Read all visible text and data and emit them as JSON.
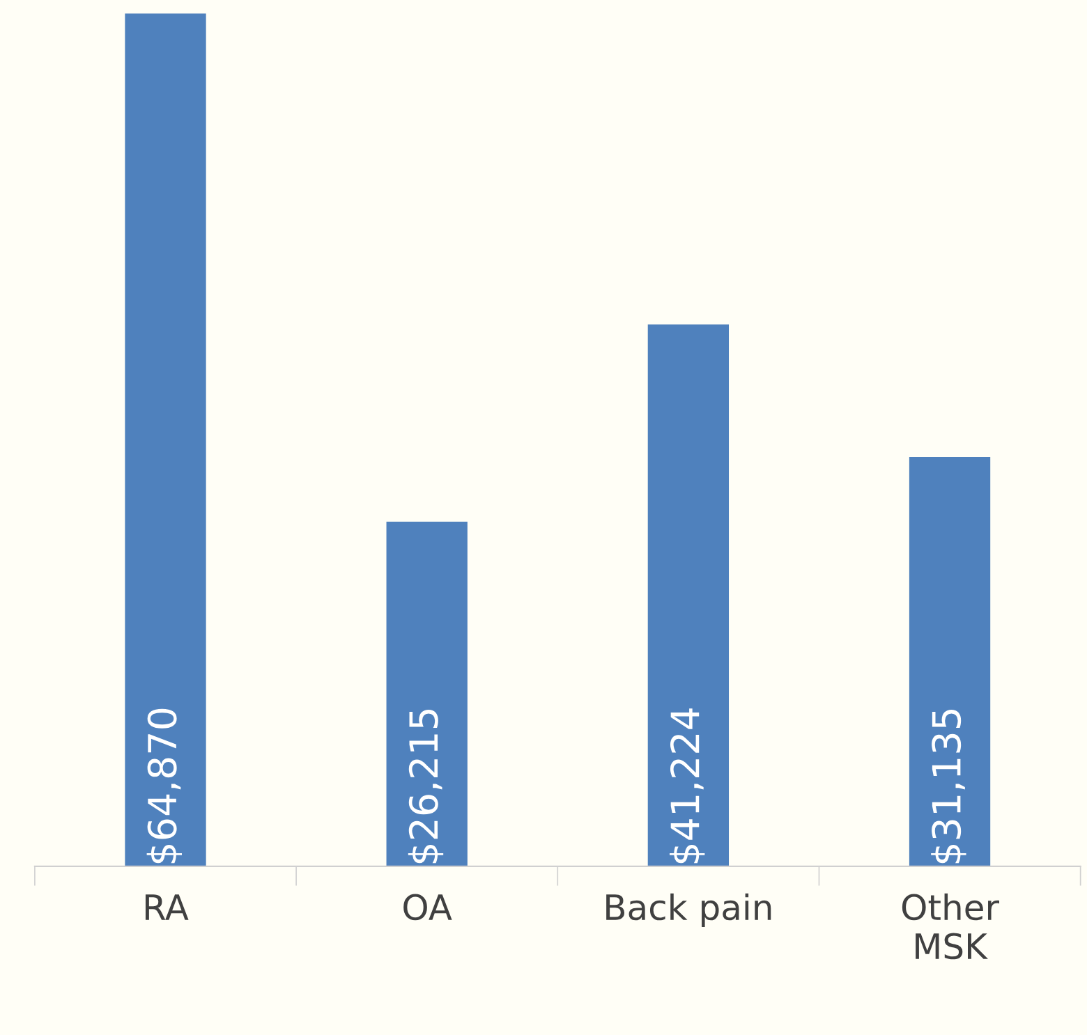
{
  "chart_data": {
    "type": "bar",
    "categories": [
      "RA",
      "OA",
      "Back pain",
      "Other\nMSK"
    ],
    "values": [
      64870,
      26215,
      41224,
      31135
    ],
    "value_labels": [
      "$64,870",
      "$26,215",
      "$41,224",
      "$31,135"
    ],
    "color": "#4f81bd",
    "grid": false,
    "legend": false
  }
}
